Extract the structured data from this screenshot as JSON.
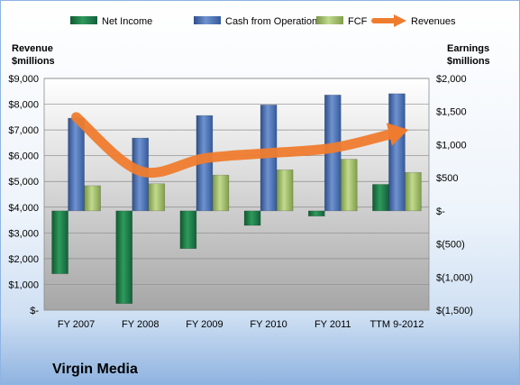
{
  "chart_data": {
    "type": "bar",
    "categories": [
      "FY 2007",
      "FY 2008",
      "FY 2009",
      "FY 2010",
      "FY 2011",
      "TTM 9-2012"
    ],
    "series": [
      {
        "name": "Net Income",
        "axis": "right",
        "kind": "bar",
        "color": "#1e7b46",
        "values": [
          -950,
          -1400,
          -570,
          -220,
          -80,
          400
        ]
      },
      {
        "name": "Cash from Operations",
        "axis": "right",
        "kind": "bar",
        "color": "#4a6fb0",
        "values": [
          1400,
          1100,
          1440,
          1600,
          1750,
          1770
        ]
      },
      {
        "name": "FCF",
        "axis": "right",
        "kind": "bar",
        "color": "#9bb866",
        "values": [
          380,
          410,
          540,
          620,
          780,
          580
        ]
      },
      {
        "name": "Revenues",
        "axis": "left",
        "kind": "line",
        "color": "#ef7c2e",
        "values": [
          7500,
          5400,
          5900,
          6100,
          6300,
          6900
        ]
      }
    ],
    "y_left": {
      "title": [
        "Revenue",
        "$millions"
      ],
      "range": [
        0,
        9000
      ],
      "ticks": [
        {
          "value": 9000,
          "label": "$9,000"
        },
        {
          "value": 8000,
          "label": "$8,000"
        },
        {
          "value": 7000,
          "label": "$7,000"
        },
        {
          "value": 6000,
          "label": "$6,000"
        },
        {
          "value": 5000,
          "label": "$5,000"
        },
        {
          "value": 4000,
          "label": "$4,000"
        },
        {
          "value": 3000,
          "label": "$3,000"
        },
        {
          "value": 2000,
          "label": "$2,000"
        },
        {
          "value": 1000,
          "label": "$1,000"
        },
        {
          "value": 0,
          "label": "$-"
        }
      ]
    },
    "y_right": {
      "title": [
        "Earnings",
        "$millions"
      ],
      "range": [
        -1500,
        2000
      ],
      "ticks": [
        {
          "value": 2000,
          "label": "$2,000"
        },
        {
          "value": 1500,
          "label": "$1,500"
        },
        {
          "value": 1000,
          "label": "$1,000"
        },
        {
          "value": 500,
          "label": "$500"
        },
        {
          "value": 0,
          "label": "$-"
        },
        {
          "value": -500,
          "label": "$(500)"
        },
        {
          "value": -1000,
          "label": "$(1,000)"
        },
        {
          "value": -1500,
          "label": "$(1,500)"
        }
      ]
    },
    "legend_position": "top",
    "grid": true,
    "footer": "Virgin Media"
  }
}
